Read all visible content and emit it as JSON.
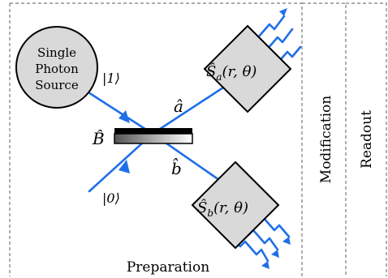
{
  "source": {
    "line1": "Single",
    "line2": "Photon",
    "line3": "Source"
  },
  "ket_one": "|1⟩",
  "ket_zero": "|0⟩",
  "beam_splitter": "B̂",
  "mode_a": "â",
  "mode_b": "b̂",
  "squeezer_a": {
    "op": "Ŝ",
    "sub": "a",
    "args": "(r, θ)"
  },
  "squeezer_b": {
    "op": "Ŝ",
    "sub": "b",
    "args": "(r, θ)"
  },
  "sections": {
    "preparation": "Preparation",
    "modification": "Modification",
    "readout": "Readout"
  },
  "colors": {
    "beam": "#1f6fe8",
    "box_fill": "#d9d9d9",
    "frame": "#7a7a7a"
  }
}
